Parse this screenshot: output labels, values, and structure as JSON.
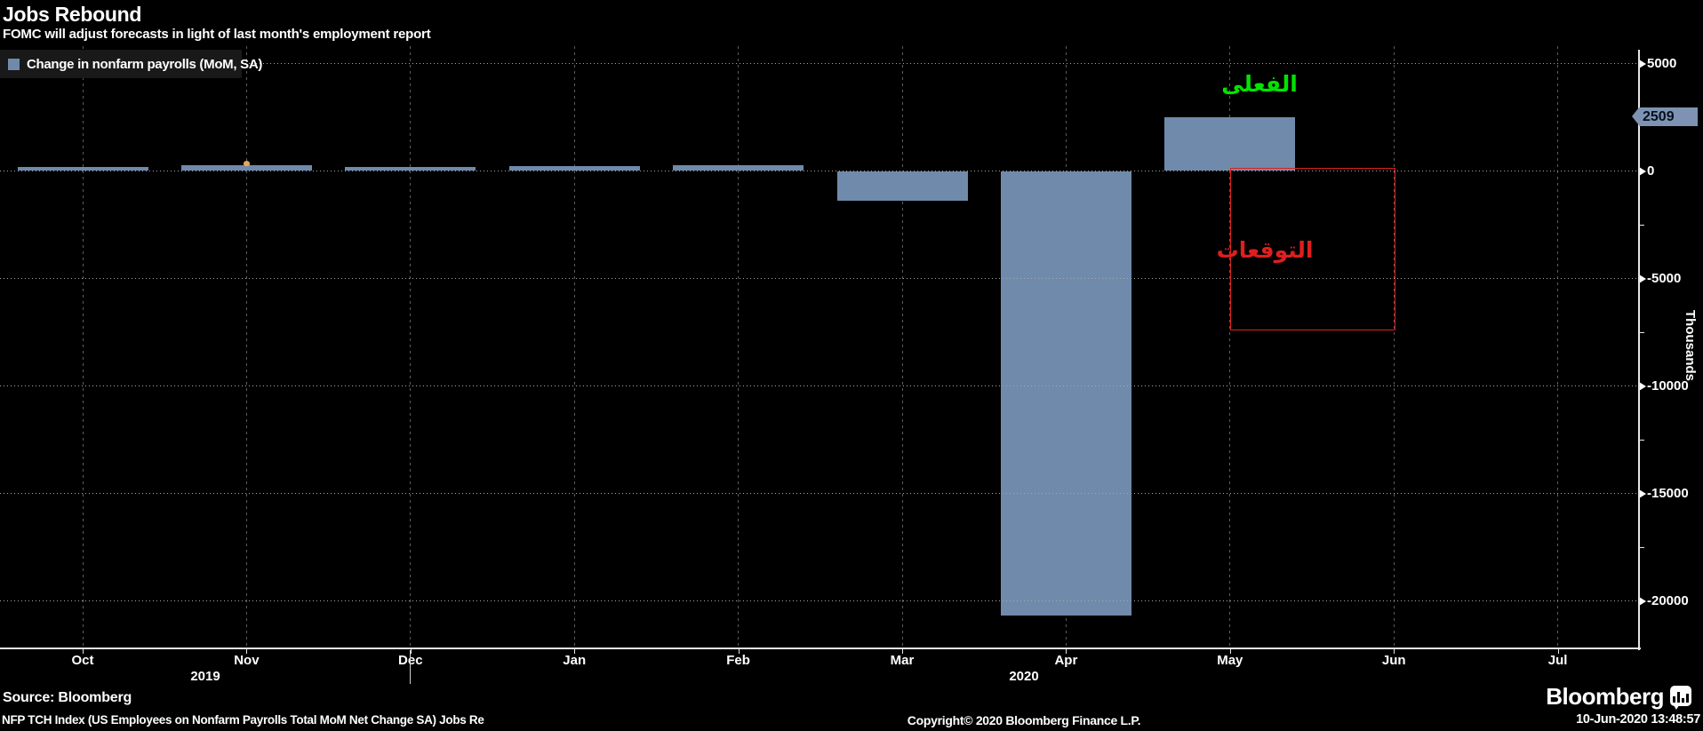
{
  "header": {
    "title": "Jobs Rebound",
    "subtitle": "FOMC will adjust forecasts in light of last month's employment report"
  },
  "legend": {
    "label": "Change in nonfarm payrolls (MoM, SA)",
    "swatch_color": "#6f8aab"
  },
  "y_axis": {
    "unit": "Thousands",
    "major_tick_labels": [
      "5000",
      "0",
      "-5000",
      "-10000",
      "-15000",
      "-20000"
    ],
    "current_value_badge": "2509",
    "badge_color": "#7e93b3"
  },
  "x_axis": {
    "months": [
      "Oct",
      "Nov",
      "Dec",
      "Jan",
      "Feb",
      "Mar",
      "Apr",
      "May",
      "Jun",
      "Jul"
    ],
    "years": [
      "2019",
      "2020"
    ]
  },
  "annotations": {
    "actual_label": {
      "text": "الفعلى",
      "color": "#00e400"
    },
    "forecast_label": {
      "text": "التوقعات",
      "color": "#e01e1e"
    }
  },
  "chart_data": {
    "type": "bar",
    "title": "Jobs Rebound",
    "subtitle": "FOMC will adjust forecasts in light of last month's employment report",
    "series_name": "Change in nonfarm payrolls (MoM, SA)",
    "categories": [
      "Oct 2019",
      "Nov 2019",
      "Dec 2019",
      "Jan 2020",
      "Feb 2020",
      "Mar 2020",
      "Apr 2020",
      "May 2020"
    ],
    "values": [
      185,
      261,
      184,
      214,
      251,
      -1373,
      -20687,
      2509
    ],
    "bar_color": "#6f8aab",
    "ylabel": "Thousands",
    "ylim": [
      -22200,
      5800
    ],
    "yticks": [
      5000,
      0,
      -5000,
      -10000,
      -15000,
      -20000
    ],
    "y_minor_ticks": [
      2500,
      -2500,
      -7500,
      -12500,
      -17500
    ],
    "xticks": [
      "Oct",
      "Nov",
      "Dec",
      "Jan",
      "Feb",
      "Mar",
      "Apr",
      "May",
      "Jun",
      "Jul"
    ],
    "grid": true,
    "legend_position": "top-left",
    "last_value_axis_label": 2509,
    "forecast_box": {
      "from_month": "May 2020",
      "to_month": "Jun 2020",
      "top_value": 150,
      "bottom_value": -7350,
      "color": "#e01e1e"
    },
    "event_marker": {
      "category": "Nov 2019",
      "color": "#e2a95d"
    }
  },
  "footer": {
    "source": "Source: Bloomberg",
    "ticker_line": "NFP TCH Index (US Employees on Nonfarm Payrolls Total MoM Net Change SA) Jobs Re",
    "copyright": "Copyright© 2020 Bloomberg Finance L.P.",
    "timestamp": "10-Jun-2020 13:48:57",
    "brand": "Bloomberg"
  }
}
